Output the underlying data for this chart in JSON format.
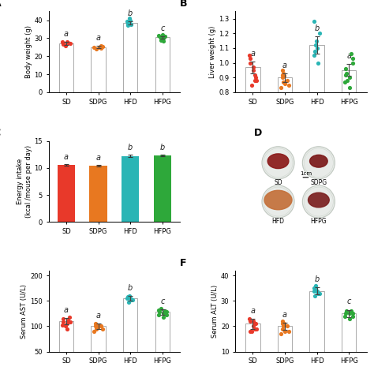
{
  "categories": [
    "SD",
    "SDPG",
    "HFD",
    "HFPG"
  ],
  "colors": {
    "SD": "#e8392a",
    "SDPG": "#e87820",
    "HFD": "#2ab5b5",
    "HFPG": "#2ea83a"
  },
  "body_weight": {
    "means": [
      27.0,
      25.0,
      38.5,
      30.5
    ],
    "sems": [
      0.8,
      0.6,
      1.0,
      0.7
    ],
    "letters": [
      "a",
      "a",
      "b",
      "c"
    ],
    "ylim": [
      0,
      45
    ],
    "yticks": [
      0,
      10,
      20,
      30,
      40
    ],
    "ylabel": "Body weight (g)",
    "dots": {
      "SD": [
        26.0,
        27.0,
        27.5,
        28.0,
        27.2,
        26.5,
        27.8
      ],
      "SDPG": [
        24.5,
        25.0,
        25.5,
        24.8,
        25.2,
        26.0,
        24.0
      ],
      "HFD": [
        37.0,
        38.0,
        39.0,
        40.0,
        41.0,
        38.5,
        37.5,
        39.5,
        38.8
      ],
      "HFPG": [
        29.0,
        30.0,
        31.0,
        30.5,
        32.0,
        28.5,
        31.5,
        30.2
      ]
    }
  },
  "liver_weight": {
    "means": [
      0.97,
      0.9,
      1.12,
      0.95
    ],
    "sems": [
      0.04,
      0.03,
      0.06,
      0.04
    ],
    "letters": [
      "a",
      "a",
      "b",
      "a"
    ],
    "ylim": [
      0.8,
      1.35
    ],
    "yticks": [
      0.8,
      0.9,
      1.0,
      1.1,
      1.2,
      1.3
    ],
    "ylabel": "Liver weight (g)",
    "dots": {
      "SD": [
        0.85,
        0.88,
        0.92,
        0.95,
        1.0,
        1.03,
        1.05,
        0.9,
        0.97,
        0.88
      ],
      "SDPG": [
        0.83,
        0.85,
        0.88,
        0.9,
        0.92,
        0.95,
        0.87,
        0.86,
        0.91,
        0.93
      ],
      "HFD": [
        1.0,
        1.05,
        1.08,
        1.12,
        1.15,
        1.2,
        1.28,
        1.1
      ],
      "HFPG": [
        0.83,
        0.87,
        0.9,
        0.93,
        0.96,
        1.0,
        1.03,
        1.06,
        0.88,
        0.92
      ]
    }
  },
  "energy_intake": {
    "means": [
      10.6,
      10.4,
      12.2,
      12.3
    ],
    "sems": [
      0.15,
      0.12,
      0.18,
      0.15
    ],
    "letters": [
      "a",
      "a",
      "b",
      "b"
    ],
    "ylim": [
      0,
      15
    ],
    "yticks": [
      0,
      5,
      10,
      15
    ],
    "ylabel": "Energy intake\n(kcal /mouse per day)"
  },
  "serum_ast": {
    "means": [
      110,
      100,
      155,
      128
    ],
    "sems": [
      6,
      5,
      5,
      6
    ],
    "letters": [
      "a",
      "a",
      "b",
      "c"
    ],
    "ylim": [
      50,
      210
    ],
    "yticks": [
      50,
      100,
      150,
      200
    ],
    "ylabel": "Serum AST (U/L)",
    "dots": {
      "SD": [
        100,
        108,
        112,
        105,
        115,
        108,
        102,
        118,
        95,
        110
      ],
      "SDPG": [
        90,
        95,
        100,
        98,
        105,
        100,
        95,
        103,
        98
      ],
      "HFD": [
        148,
        152,
        155,
        158,
        160,
        155,
        152,
        158,
        155
      ],
      "HFPG": [
        118,
        122,
        125,
        128,
        132,
        128,
        122,
        130,
        135
      ]
    }
  },
  "serum_alt": {
    "means": [
      21,
      20,
      34,
      25
    ],
    "sems": [
      2,
      1.5,
      1.5,
      1.5
    ],
    "letters": [
      "a",
      "a",
      "b",
      "c"
    ],
    "ylim": [
      10,
      42
    ],
    "yticks": [
      10,
      20,
      30,
      40
    ],
    "ylabel": "Serum ALT (U/L)",
    "dots": {
      "SD": [
        18,
        19,
        21,
        20,
        22,
        18,
        23,
        21,
        22,
        19
      ],
      "SDPG": [
        17,
        18,
        20,
        21,
        22,
        19,
        20,
        18,
        21
      ],
      "HFD": [
        32,
        33,
        34,
        35,
        36,
        34,
        33,
        35,
        34
      ],
      "HFPG": [
        23,
        24,
        25,
        26,
        25,
        24,
        25,
        26
      ]
    }
  }
}
